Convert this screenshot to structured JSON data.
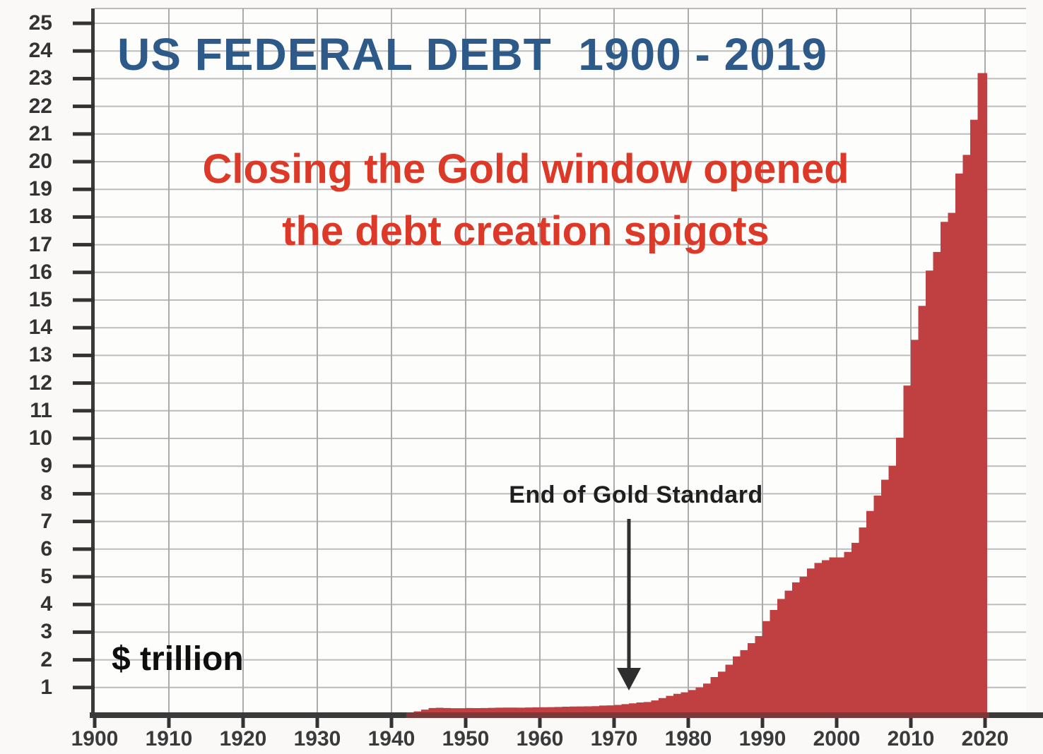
{
  "title": {
    "text": "US FEDERAL DEBT  1900 - 2019",
    "color": "#2e5a8a"
  },
  "subtitle": {
    "line1": "Closing the Gold window opened",
    "line2": "the debt creation spigots",
    "color": "#dc3928"
  },
  "annotation": {
    "text": "End of Gold Standard",
    "arrow_year": 1972
  },
  "unit_label": "$ trillion",
  "chart_data": {
    "type": "area",
    "title": "US FEDERAL DEBT 1900 - 2019",
    "xlabel": "",
    "ylabel": "$ trillion",
    "xlim": [
      1900,
      2025
    ],
    "ylim": [
      0,
      25.5
    ],
    "grid": true,
    "legend_position": "none",
    "fill_color": "#c04042",
    "axis_color": "#3a3a3a",
    "axis_under_area_color": "#7d383a",
    "x_ticks": [
      1900,
      1910,
      1920,
      1930,
      1940,
      1950,
      1960,
      1970,
      1980,
      1990,
      2000,
      2010,
      2020
    ],
    "y_ticks": [
      1,
      2,
      3,
      4,
      5,
      6,
      7,
      8,
      9,
      10,
      11,
      12,
      13,
      14,
      15,
      16,
      17,
      18,
      19,
      20,
      21,
      22,
      23,
      24,
      25
    ],
    "series": [
      {
        "name": "US federal debt ($ trillion)",
        "x": [
          1900,
          1905,
          1910,
          1915,
          1920,
          1925,
          1930,
          1935,
          1940,
          1941,
          1942,
          1943,
          1944,
          1945,
          1946,
          1947,
          1948,
          1949,
          1950,
          1951,
          1952,
          1953,
          1954,
          1955,
          1956,
          1957,
          1958,
          1959,
          1960,
          1961,
          1962,
          1963,
          1964,
          1965,
          1966,
          1967,
          1968,
          1969,
          1970,
          1971,
          1972,
          1973,
          1974,
          1975,
          1976,
          1977,
          1978,
          1979,
          1980,
          1981,
          1982,
          1983,
          1984,
          1985,
          1986,
          1987,
          1988,
          1989,
          1990,
          1991,
          1992,
          1993,
          1994,
          1995,
          1996,
          1997,
          1998,
          1999,
          2000,
          2001,
          2002,
          2003,
          2004,
          2005,
          2006,
          2007,
          2008,
          2009,
          2010,
          2011,
          2012,
          2013,
          2014,
          2015,
          2016,
          2017,
          2018,
          2019
        ],
        "values": [
          0.002,
          0.003,
          0.003,
          0.003,
          0.026,
          0.02,
          0.016,
          0.029,
          0.043,
          0.049,
          0.072,
          0.137,
          0.201,
          0.259,
          0.269,
          0.258,
          0.252,
          0.253,
          0.257,
          0.255,
          0.259,
          0.266,
          0.271,
          0.274,
          0.273,
          0.271,
          0.276,
          0.285,
          0.286,
          0.289,
          0.298,
          0.306,
          0.312,
          0.317,
          0.32,
          0.326,
          0.348,
          0.354,
          0.371,
          0.398,
          0.427,
          0.458,
          0.475,
          0.533,
          0.62,
          0.699,
          0.772,
          0.827,
          0.908,
          1.0,
          1.142,
          1.377,
          1.572,
          1.823,
          2.125,
          2.35,
          2.602,
          2.857,
          3.4,
          3.8,
          4.2,
          4.5,
          4.8,
          5.0,
          5.3,
          5.5,
          5.6,
          5.7,
          5.7,
          5.9,
          6.228,
          6.783,
          7.379,
          7.933,
          8.507,
          9.008,
          10.025,
          11.91,
          13.562,
          14.79,
          16.066,
          16.738,
          17.824,
          18.151,
          19.573,
          20.245,
          21.516,
          23.2
        ]
      }
    ]
  }
}
